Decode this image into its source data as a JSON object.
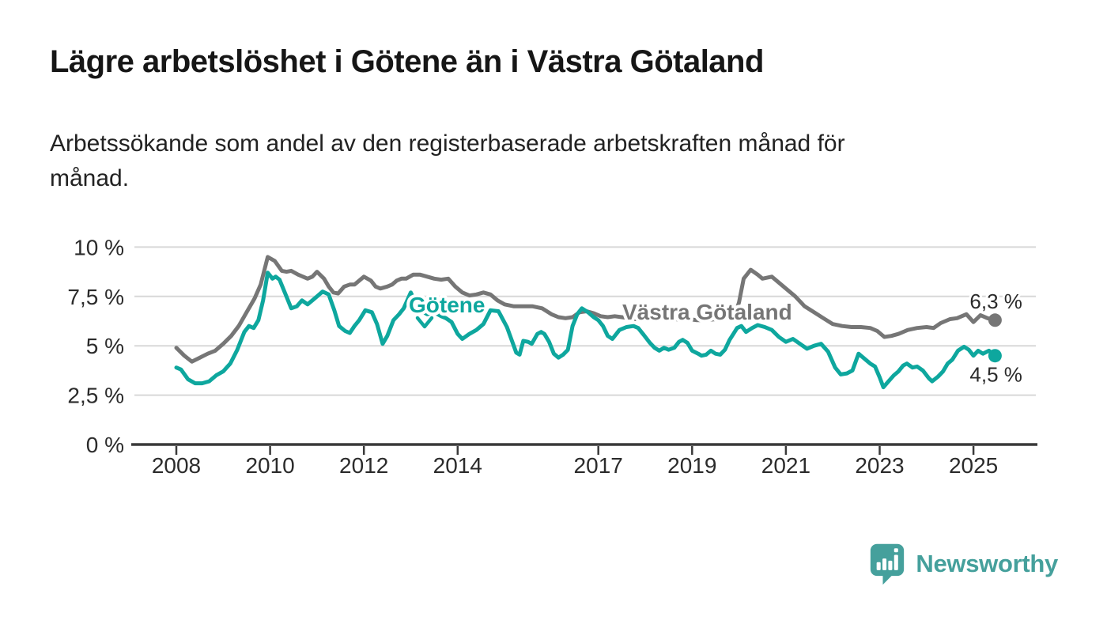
{
  "header": {
    "title": "Lägre arbetslöshet i Götene än i Västra Götaland",
    "subtitle_lines": [
      "Arbetssökande som andel av den registerbaserade arbetskraften månad för",
      "månad."
    ]
  },
  "branding": {
    "logo_text": "Newsworthy",
    "logo_color": "#45a09c",
    "logo_mark": "speech-bubble-bar-chart-icon"
  },
  "colors": {
    "gotene": "#0ea79e",
    "vastra_gotaland": "#767676",
    "grid": "#d8d8d8",
    "axis": "#3a3a3a",
    "text": "#2b2b2b"
  },
  "chart_data": {
    "type": "line",
    "title": "Lägre arbetslöshet i Götene än i Västra Götaland",
    "subtitle": "Arbetssökande som andel av den registerbaserade arbetskraften månad för månad.",
    "unit": "%",
    "grid": "horizontal",
    "legend_position": "inline-labels",
    "xlim": [
      2007.1,
      2026.4
    ],
    "ylim": [
      0,
      10.5
    ],
    "x_ticks": {
      "values": [
        2008,
        2010,
        2012,
        2014,
        2017,
        2019,
        2021,
        2023,
        2025
      ],
      "labels": [
        "2008",
        "2010",
        "2012",
        "2014",
        "2017",
        "2019",
        "2021",
        "2023",
        "2025"
      ]
    },
    "y_ticks": {
      "values": [
        0,
        2.5,
        5,
        7.5,
        10
      ],
      "labels": [
        "0 %",
        "2,5 %",
        "5 %",
        "7,5 %",
        "10 %"
      ]
    },
    "series": [
      {
        "name": "Västra Götaland",
        "color": "#767676",
        "end_value": 6.3,
        "end_label": "6,3 %",
        "points": [
          [
            2008.0,
            4.9
          ],
          [
            2008.17,
            4.5
          ],
          [
            2008.33,
            4.2
          ],
          [
            2008.5,
            4.4
          ],
          [
            2008.67,
            4.6
          ],
          [
            2008.83,
            4.75
          ],
          [
            2009.0,
            5.1
          ],
          [
            2009.17,
            5.5
          ],
          [
            2009.33,
            6.0
          ],
          [
            2009.5,
            6.7
          ],
          [
            2009.67,
            7.4
          ],
          [
            2009.8,
            8.1
          ],
          [
            2009.95,
            9.5
          ],
          [
            2010.1,
            9.3
          ],
          [
            2010.25,
            8.8
          ],
          [
            2010.35,
            8.75
          ],
          [
            2010.45,
            8.8
          ],
          [
            2010.6,
            8.6
          ],
          [
            2010.7,
            8.5
          ],
          [
            2010.8,
            8.4
          ],
          [
            2010.9,
            8.5
          ],
          [
            2011.0,
            8.75
          ],
          [
            2011.15,
            8.4
          ],
          [
            2011.25,
            8.0
          ],
          [
            2011.35,
            7.7
          ],
          [
            2011.45,
            7.65
          ],
          [
            2011.58,
            8.0
          ],
          [
            2011.7,
            8.1
          ],
          [
            2011.8,
            8.1
          ],
          [
            2011.9,
            8.3
          ],
          [
            2012.0,
            8.5
          ],
          [
            2012.15,
            8.3
          ],
          [
            2012.25,
            8.0
          ],
          [
            2012.35,
            7.9
          ],
          [
            2012.5,
            8.0
          ],
          [
            2012.6,
            8.1
          ],
          [
            2012.7,
            8.3
          ],
          [
            2012.8,
            8.4
          ],
          [
            2012.9,
            8.4
          ],
          [
            2013.05,
            8.6
          ],
          [
            2013.2,
            8.6
          ],
          [
            2013.35,
            8.5
          ],
          [
            2013.5,
            8.4
          ],
          [
            2013.65,
            8.35
          ],
          [
            2013.8,
            8.4
          ],
          [
            2013.95,
            8.0
          ],
          [
            2014.1,
            7.7
          ],
          [
            2014.25,
            7.55
          ],
          [
            2014.4,
            7.6
          ],
          [
            2014.55,
            7.7
          ],
          [
            2014.7,
            7.6
          ],
          [
            2014.85,
            7.3
          ],
          [
            2015.0,
            7.1
          ],
          [
            2015.2,
            7.0
          ],
          [
            2015.4,
            7.0
          ],
          [
            2015.6,
            7.0
          ],
          [
            2015.8,
            6.9
          ],
          [
            2016.0,
            6.6
          ],
          [
            2016.15,
            6.45
          ],
          [
            2016.3,
            6.4
          ],
          [
            2016.45,
            6.45
          ],
          [
            2016.6,
            6.7
          ],
          [
            2016.75,
            6.75
          ],
          [
            2016.9,
            6.65
          ],
          [
            2017.05,
            6.5
          ],
          [
            2017.2,
            6.45
          ],
          [
            2017.35,
            6.5
          ],
          [
            2017.5,
            6.45
          ],
          [
            2017.65,
            6.4
          ],
          [
            2017.8,
            6.35
          ],
          [
            2018.0,
            6.4
          ],
          [
            2018.2,
            6.45
          ],
          [
            2018.35,
            6.4
          ],
          [
            2018.5,
            6.35
          ],
          [
            2018.65,
            6.35
          ],
          [
            2018.8,
            6.3
          ],
          [
            2018.95,
            6.35
          ],
          [
            2019.1,
            6.3
          ],
          [
            2019.3,
            6.3
          ],
          [
            2019.5,
            6.35
          ],
          [
            2019.65,
            6.4
          ],
          [
            2019.8,
            6.45
          ],
          [
            2019.92,
            6.6
          ],
          [
            2020.0,
            7.2
          ],
          [
            2020.1,
            8.4
          ],
          [
            2020.25,
            8.85
          ],
          [
            2020.4,
            8.6
          ],
          [
            2020.5,
            8.4
          ],
          [
            2020.6,
            8.45
          ],
          [
            2020.7,
            8.5
          ],
          [
            2020.85,
            8.2
          ],
          [
            2021.0,
            7.9
          ],
          [
            2021.2,
            7.5
          ],
          [
            2021.4,
            7.0
          ],
          [
            2021.6,
            6.7
          ],
          [
            2021.8,
            6.4
          ],
          [
            2022.0,
            6.1
          ],
          [
            2022.2,
            6.0
          ],
          [
            2022.4,
            5.95
          ],
          [
            2022.6,
            5.95
          ],
          [
            2022.8,
            5.9
          ],
          [
            2022.95,
            5.75
          ],
          [
            2023.1,
            5.45
          ],
          [
            2023.25,
            5.5
          ],
          [
            2023.4,
            5.6
          ],
          [
            2023.6,
            5.8
          ],
          [
            2023.8,
            5.9
          ],
          [
            2024.0,
            5.95
          ],
          [
            2024.15,
            5.9
          ],
          [
            2024.3,
            6.15
          ],
          [
            2024.5,
            6.35
          ],
          [
            2024.65,
            6.4
          ],
          [
            2024.85,
            6.6
          ],
          [
            2025.0,
            6.2
          ],
          [
            2025.15,
            6.55
          ],
          [
            2025.3,
            6.4
          ],
          [
            2025.46,
            6.3
          ]
        ]
      },
      {
        "name": "Götene",
        "color": "#0ea79e",
        "end_value": 4.5,
        "end_label": "4,5 %",
        "points": [
          [
            2008.0,
            3.9
          ],
          [
            2008.1,
            3.8
          ],
          [
            2008.25,
            3.3
          ],
          [
            2008.4,
            3.1
          ],
          [
            2008.55,
            3.1
          ],
          [
            2008.7,
            3.2
          ],
          [
            2008.85,
            3.5
          ],
          [
            2009.0,
            3.7
          ],
          [
            2009.15,
            4.1
          ],
          [
            2009.3,
            4.8
          ],
          [
            2009.45,
            5.7
          ],
          [
            2009.55,
            6.0
          ],
          [
            2009.65,
            5.9
          ],
          [
            2009.75,
            6.3
          ],
          [
            2009.85,
            7.3
          ],
          [
            2009.95,
            8.7
          ],
          [
            2010.05,
            8.4
          ],
          [
            2010.12,
            8.5
          ],
          [
            2010.2,
            8.35
          ],
          [
            2010.33,
            7.6
          ],
          [
            2010.45,
            6.9
          ],
          [
            2010.57,
            7.0
          ],
          [
            2010.68,
            7.3
          ],
          [
            2010.8,
            7.1
          ],
          [
            2010.9,
            7.3
          ],
          [
            2011.0,
            7.5
          ],
          [
            2011.12,
            7.75
          ],
          [
            2011.25,
            7.6
          ],
          [
            2011.37,
            6.8
          ],
          [
            2011.47,
            6.0
          ],
          [
            2011.6,
            5.75
          ],
          [
            2011.7,
            5.65
          ],
          [
            2011.8,
            6.0
          ],
          [
            2011.9,
            6.3
          ],
          [
            2012.03,
            6.8
          ],
          [
            2012.17,
            6.7
          ],
          [
            2012.28,
            6.1
          ],
          [
            2012.4,
            5.1
          ],
          [
            2012.5,
            5.5
          ],
          [
            2012.63,
            6.3
          ],
          [
            2012.75,
            6.6
          ],
          [
            2012.85,
            6.9
          ],
          [
            2013.0,
            7.7
          ],
          [
            2013.1,
            7.2
          ],
          [
            2013.2,
            6.8
          ],
          [
            2013.35,
            6.6
          ],
          [
            2013.5,
            6.7
          ],
          [
            2013.65,
            6.5
          ],
          [
            2013.75,
            6.4
          ],
          [
            2013.87,
            6.2
          ],
          [
            2014.0,
            5.6
          ],
          [
            2014.1,
            5.35
          ],
          [
            2014.25,
            5.6
          ],
          [
            2014.4,
            5.8
          ],
          [
            2014.55,
            6.1
          ],
          [
            2014.7,
            6.8
          ],
          [
            2014.87,
            6.75
          ],
          [
            2014.95,
            6.4
          ],
          [
            2015.05,
            5.95
          ],
          [
            2015.15,
            5.3
          ],
          [
            2015.25,
            4.65
          ],
          [
            2015.32,
            4.55
          ],
          [
            2015.4,
            5.25
          ],
          [
            2015.5,
            5.2
          ],
          [
            2015.58,
            5.1
          ],
          [
            2015.7,
            5.6
          ],
          [
            2015.78,
            5.7
          ],
          [
            2015.85,
            5.6
          ],
          [
            2015.95,
            5.2
          ],
          [
            2016.05,
            4.6
          ],
          [
            2016.15,
            4.4
          ],
          [
            2016.25,
            4.55
          ],
          [
            2016.35,
            4.8
          ],
          [
            2016.45,
            6.0
          ],
          [
            2016.55,
            6.6
          ],
          [
            2016.65,
            6.9
          ],
          [
            2016.78,
            6.7
          ],
          [
            2016.9,
            6.45
          ],
          [
            2017.0,
            6.3
          ],
          [
            2017.1,
            6.0
          ],
          [
            2017.2,
            5.5
          ],
          [
            2017.3,
            5.35
          ],
          [
            2017.45,
            5.8
          ],
          [
            2017.6,
            5.95
          ],
          [
            2017.75,
            6.0
          ],
          [
            2017.85,
            5.9
          ],
          [
            2017.97,
            5.55
          ],
          [
            2018.1,
            5.15
          ],
          [
            2018.2,
            4.9
          ],
          [
            2018.3,
            4.75
          ],
          [
            2018.4,
            4.9
          ],
          [
            2018.5,
            4.8
          ],
          [
            2018.62,
            4.9
          ],
          [
            2018.72,
            5.2
          ],
          [
            2018.8,
            5.3
          ],
          [
            2018.9,
            5.15
          ],
          [
            2019.0,
            4.75
          ],
          [
            2019.13,
            4.6
          ],
          [
            2019.2,
            4.5
          ],
          [
            2019.3,
            4.55
          ],
          [
            2019.4,
            4.75
          ],
          [
            2019.5,
            4.6
          ],
          [
            2019.6,
            4.55
          ],
          [
            2019.7,
            4.8
          ],
          [
            2019.8,
            5.3
          ],
          [
            2019.88,
            5.6
          ],
          [
            2019.96,
            5.9
          ],
          [
            2020.05,
            6.0
          ],
          [
            2020.15,
            5.7
          ],
          [
            2020.28,
            5.9
          ],
          [
            2020.4,
            6.05
          ],
          [
            2020.55,
            5.95
          ],
          [
            2020.7,
            5.8
          ],
          [
            2020.85,
            5.45
          ],
          [
            2021.0,
            5.2
          ],
          [
            2021.15,
            5.35
          ],
          [
            2021.3,
            5.1
          ],
          [
            2021.45,
            4.85
          ],
          [
            2021.6,
            5.0
          ],
          [
            2021.75,
            5.1
          ],
          [
            2021.9,
            4.7
          ],
          [
            2022.05,
            3.9
          ],
          [
            2022.17,
            3.55
          ],
          [
            2022.3,
            3.6
          ],
          [
            2022.42,
            3.75
          ],
          [
            2022.55,
            4.6
          ],
          [
            2022.65,
            4.4
          ],
          [
            2022.8,
            4.1
          ],
          [
            2022.9,
            3.95
          ],
          [
            2023.0,
            3.4
          ],
          [
            2023.08,
            2.9
          ],
          [
            2023.17,
            3.15
          ],
          [
            2023.3,
            3.5
          ],
          [
            2023.4,
            3.7
          ],
          [
            2023.5,
            4.0
          ],
          [
            2023.58,
            4.1
          ],
          [
            2023.7,
            3.9
          ],
          [
            2023.8,
            3.95
          ],
          [
            2023.92,
            3.75
          ],
          [
            2024.05,
            3.35
          ],
          [
            2024.12,
            3.2
          ],
          [
            2024.25,
            3.45
          ],
          [
            2024.35,
            3.7
          ],
          [
            2024.45,
            4.1
          ],
          [
            2024.55,
            4.3
          ],
          [
            2024.67,
            4.75
          ],
          [
            2024.8,
            4.95
          ],
          [
            2024.9,
            4.8
          ],
          [
            2025.0,
            4.5
          ],
          [
            2025.1,
            4.75
          ],
          [
            2025.2,
            4.6
          ],
          [
            2025.33,
            4.75
          ],
          [
            2025.46,
            4.5
          ]
        ]
      }
    ]
  }
}
